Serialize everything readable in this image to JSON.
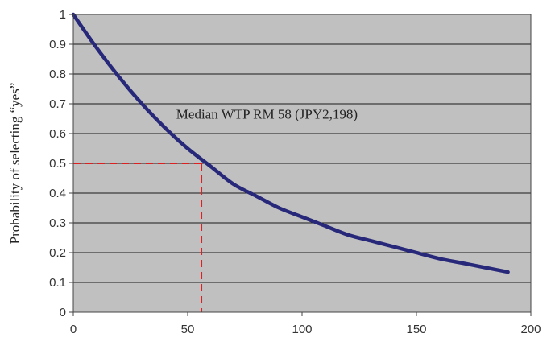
{
  "chart_data": {
    "type": "line",
    "title": "",
    "xlabel": "",
    "ylabel": "Probability of selecting “yes”",
    "xlim": [
      0,
      200
    ],
    "ylim": [
      0,
      1
    ],
    "x_ticks": [
      0,
      50,
      100,
      150,
      200
    ],
    "y_ticks": [
      0,
      0.1,
      0.2,
      0.3,
      0.4,
      0.5,
      0.6,
      0.7,
      0.8,
      0.9,
      1
    ],
    "y_tick_labels": [
      "0",
      "0.1",
      "0.2",
      "0.3",
      "0.4",
      "0.5",
      "0.6",
      "0.7",
      "0.8",
      "0.9",
      "1"
    ],
    "grid": {
      "horizontal": true,
      "vertical": false
    },
    "plot_background": "#c0c0c0",
    "series": [
      {
        "color": "#27287a",
        "x": [
          0,
          10,
          20,
          30,
          40,
          50,
          60,
          70,
          80,
          90,
          100,
          110,
          120,
          130,
          140,
          150,
          160,
          170,
          180,
          190
        ],
        "y": [
          1.0,
          0.89,
          0.79,
          0.7,
          0.62,
          0.55,
          0.49,
          0.43,
          0.39,
          0.35,
          0.32,
          0.29,
          0.26,
          0.24,
          0.22,
          0.2,
          0.18,
          0.165,
          0.15,
          0.135
        ]
      }
    ],
    "reference": {
      "x": 56,
      "y": 0.5,
      "color": "#e02020",
      "style": "dashed"
    },
    "annotation": {
      "text": "Median WTP RM 58 (JPY2,198)",
      "x": 45,
      "y": 0.65
    }
  }
}
